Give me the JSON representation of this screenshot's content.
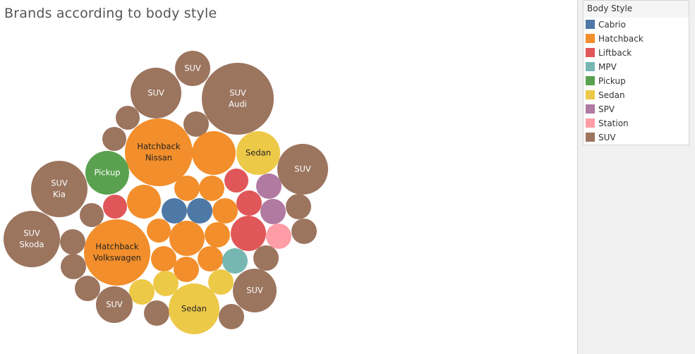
{
  "chart_data": {
    "type": "packed-bubble",
    "title": "Brands according to body style",
    "legend": {
      "title": "Body Style",
      "position": "top-right",
      "items": [
        {
          "label": "Cabrio",
          "color": "#4e79a7"
        },
        {
          "label": "Hatchback",
          "color": "#f28e2b"
        },
        {
          "label": "Liftback",
          "color": "#e15759"
        },
        {
          "label": "MPV",
          "color": "#76b7b2"
        },
        {
          "label": "Pickup",
          "color": "#59a14f"
        },
        {
          "label": "Sedan",
          "color": "#edc948"
        },
        {
          "label": "SPV",
          "color": "#b07aa1"
        },
        {
          "label": "Station",
          "color": "#ff9da7"
        },
        {
          "label": "SUV",
          "color": "#9c755f"
        }
      ]
    },
    "labeled_bubbles": [
      {
        "body_style": "SUV",
        "brand": ""
      },
      {
        "body_style": "SUV",
        "brand": ""
      },
      {
        "body_style": "SUV",
        "brand": "Audi"
      },
      {
        "body_style": "Hatchback",
        "brand": "Nissan"
      },
      {
        "body_style": "Sedan",
        "brand": ""
      },
      {
        "body_style": "SUV",
        "brand": ""
      },
      {
        "body_style": "Pickup",
        "brand": ""
      },
      {
        "body_style": "SUV",
        "brand": "Kia"
      },
      {
        "body_style": "SUV",
        "brand": "Skoda"
      },
      {
        "body_style": "Hatchback",
        "brand": "Volkswagen"
      },
      {
        "body_style": "SUV",
        "brand": ""
      },
      {
        "body_style": "SUV",
        "brand": ""
      },
      {
        "body_style": "Sedan",
        "brand": ""
      }
    ]
  }
}
